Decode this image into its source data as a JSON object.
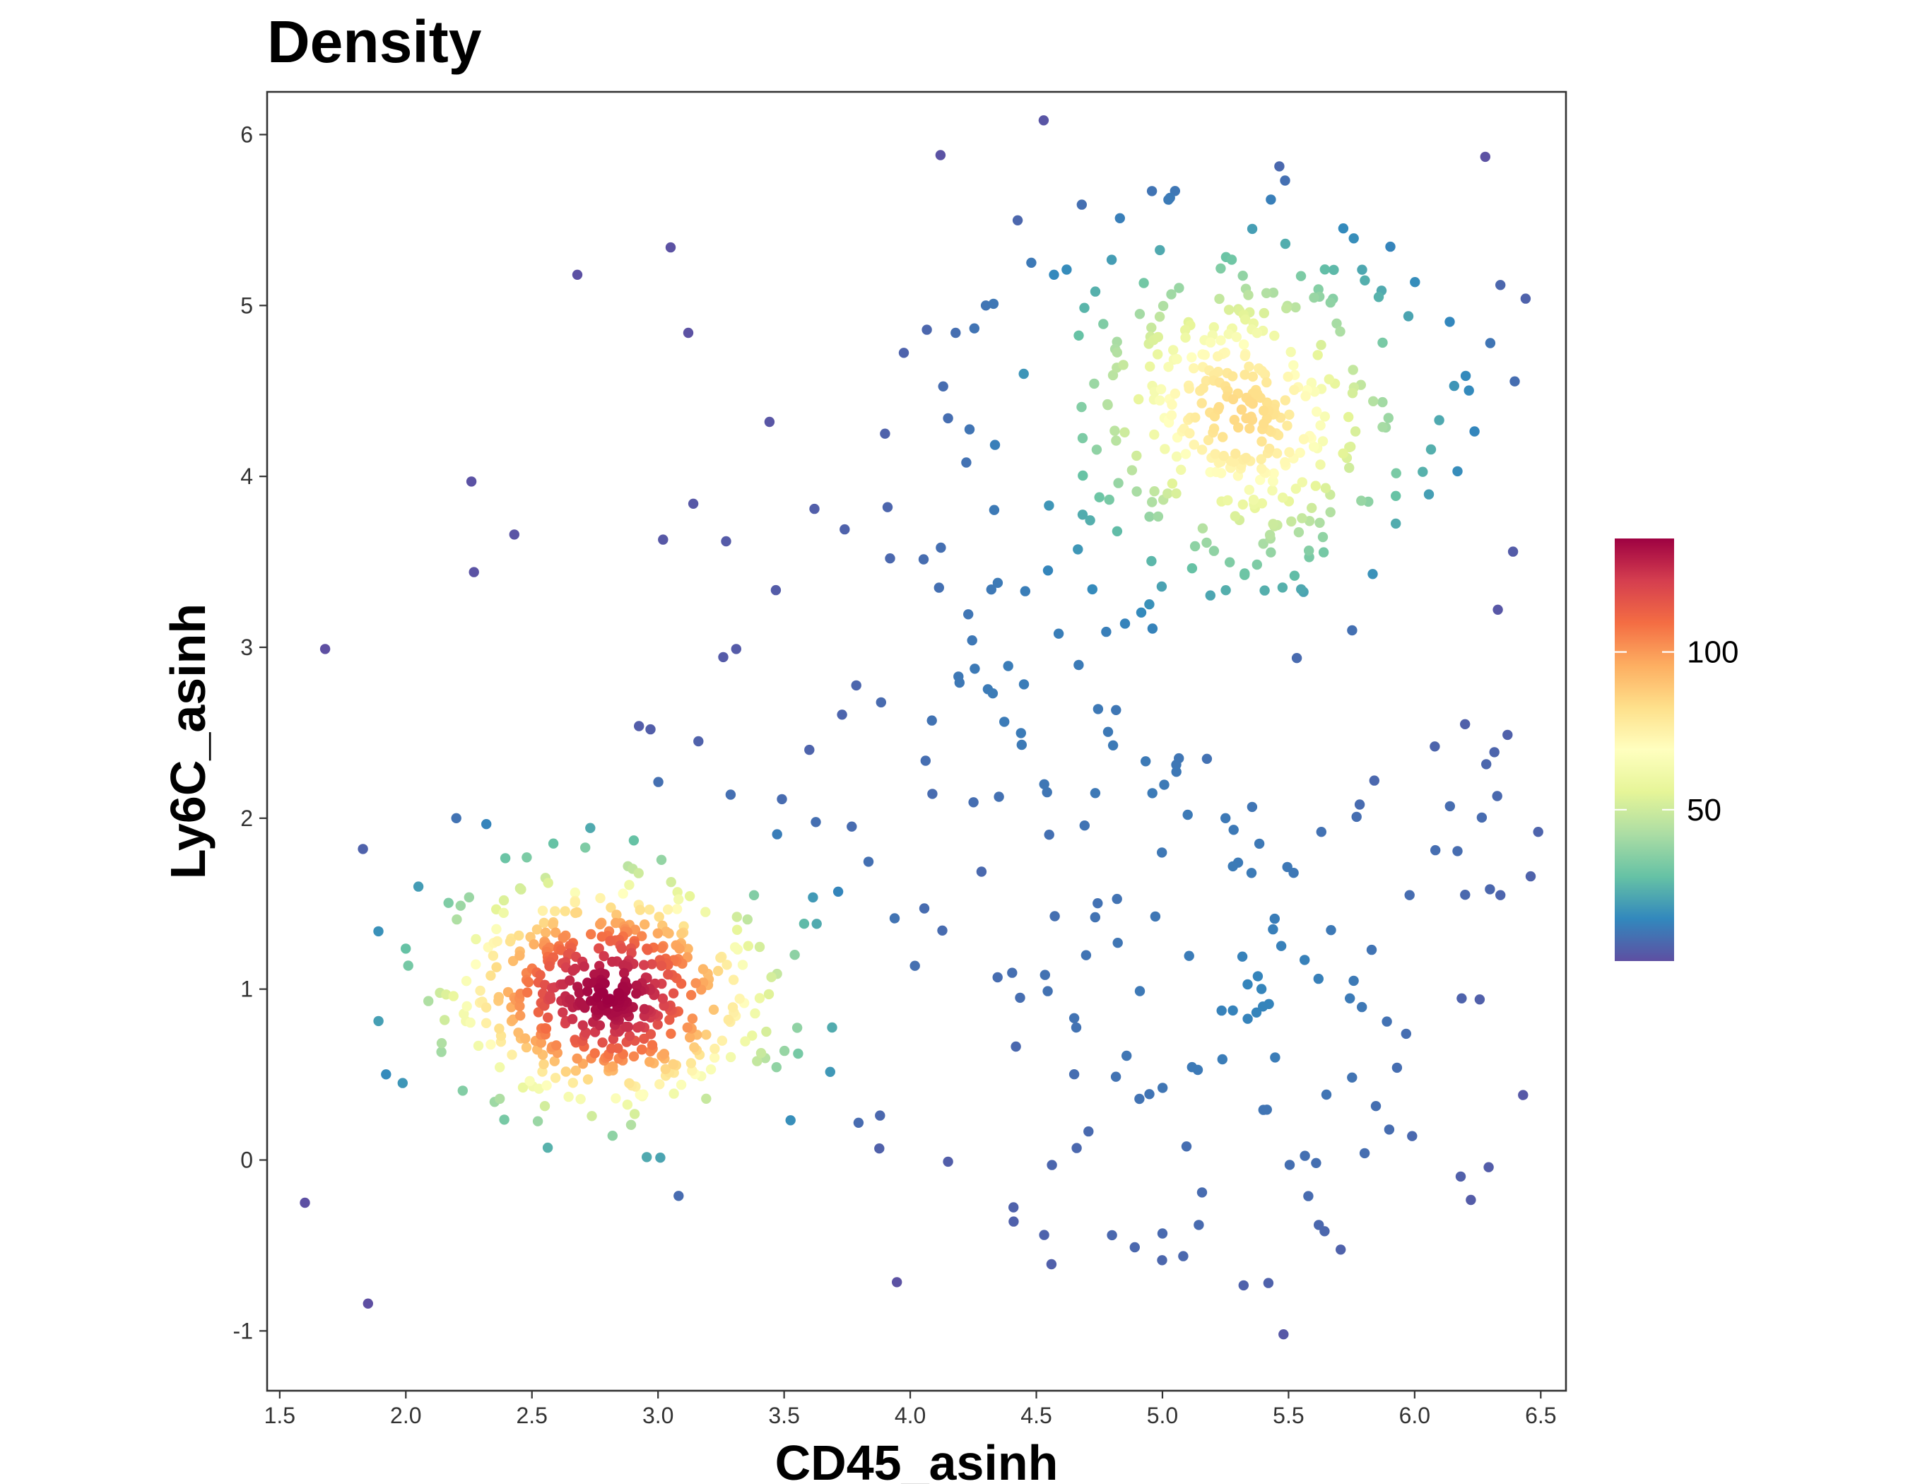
{
  "chart_data": {
    "type": "scatter",
    "title": "Density",
    "xlabel": "CD45_asinh",
    "ylabel": "Ly6C_asinh",
    "xlim": [
      1.45,
      6.6
    ],
    "ylim": [
      -1.35,
      6.25
    ],
    "x_ticks": [
      1.5,
      2.0,
      2.5,
      3.0,
      3.5,
      4.0,
      4.5,
      5.0,
      5.5,
      6.0,
      6.5
    ],
    "x_tick_labels": [
      "1.5",
      "2.0",
      "2.5",
      "3.0",
      "3.5",
      "4.0",
      "4.5",
      "5.0",
      "5.5",
      "6.0",
      "6.5"
    ],
    "y_ticks": [
      -1,
      0,
      1,
      2,
      3,
      4,
      5,
      6
    ],
    "y_tick_labels": [
      "-1",
      "0",
      "1",
      "2",
      "3",
      "4",
      "5",
      "6"
    ],
    "grid": false,
    "legend": {
      "position": "right",
      "type": "colorbar",
      "palette": "Spectral",
      "colors_low_to_high": [
        "#5e4fa2",
        "#3288bd",
        "#66c2a5",
        "#abdda4",
        "#e6f598",
        "#ffffbf",
        "#fee08b",
        "#fdae61",
        "#f46d43",
        "#d53e4f",
        "#9e0142"
      ],
      "range": [
        2,
        136
      ],
      "tick_values": [
        50,
        100
      ],
      "tick_labels": [
        "50",
        "100"
      ]
    },
    "clusters": [
      {
        "center": [
          2.8,
          0.95
        ],
        "sd": [
          0.3,
          0.32
        ],
        "n": 520
      },
      {
        "center": [
          5.35,
          4.4
        ],
        "sd": [
          0.35,
          0.52
        ],
        "n": 380
      },
      {
        "center": [
          5.2,
          0.9
        ],
        "sd": [
          0.62,
          0.85
        ],
        "n": 110
      },
      {
        "center": [
          4.1,
          2.7
        ],
        "sd": [
          0.55,
          0.9
        ],
        "n": 70
      }
    ],
    "sample_points": [
      [
        1.6,
        -0.25
      ],
      [
        1.68,
        2.99
      ],
      [
        1.83,
        1.82
      ],
      [
        1.85,
        -0.84
      ],
      [
        2.05,
        1.6
      ],
      [
        2.2,
        2.0
      ],
      [
        2.26,
        3.97
      ],
      [
        2.27,
        3.44
      ],
      [
        2.43,
        3.66
      ],
      [
        2.68,
        5.18
      ],
      [
        3.05,
        5.34
      ],
      [
        3.12,
        4.84
      ],
      [
        3.14,
        3.84
      ],
      [
        3.16,
        2.45
      ],
      [
        3.27,
        3.62
      ],
      [
        3.31,
        2.99
      ],
      [
        2.97,
        2.52
      ],
      [
        3.02,
        3.63
      ],
      [
        4.12,
        5.88
      ],
      [
        4.33,
        5.01
      ],
      [
        4.68,
        5.59
      ],
      [
        5.03,
        5.63
      ],
      [
        5.05,
        5.67
      ],
      [
        5.43,
        5.62
      ],
      [
        6.28,
        5.87
      ],
      [
        6.34,
        5.12
      ],
      [
        6.44,
        5.04
      ],
      [
        6.3,
        4.78
      ],
      [
        6.17,
        4.03
      ],
      [
        6.39,
        3.56
      ],
      [
        6.33,
        3.22
      ],
      [
        6.49,
        1.92
      ],
      [
        6.46,
        1.66
      ],
      [
        6.34,
        1.55
      ],
      [
        6.43,
        0.38
      ],
      [
        5.48,
        -1.02
      ],
      [
        5.42,
        -0.72
      ],
      [
        4.56,
        -0.61
      ],
      [
        4.41,
        -0.36
      ],
      [
        4.8,
        -0.44
      ],
      [
        5.0,
        -0.43
      ],
      [
        5.62,
        -0.38
      ],
      [
        4.15,
        -0.01
      ],
      [
        4.66,
        0.07
      ],
      [
        3.88,
        0.26
      ],
      [
        3.6,
        2.4
      ],
      [
        3.62,
        3.81
      ],
      [
        3.74,
        3.69
      ],
      [
        3.9,
        4.25
      ],
      [
        3.91,
        3.82
      ],
      [
        3.92,
        3.52
      ],
      [
        4.15,
        4.34
      ],
      [
        4.18,
        4.84
      ],
      [
        4.3,
        5.0
      ],
      [
        4.45,
        4.6
      ],
      [
        4.48,
        5.25
      ],
      [
        4.62,
        5.21
      ],
      [
        4.57,
        5.18
      ],
      [
        4.65,
        0.83
      ],
      [
        5.1,
        2.02
      ],
      [
        5.25,
        2.0
      ],
      [
        5.3,
        1.74
      ],
      [
        5.52,
        1.68
      ],
      [
        5.63,
        1.92
      ],
      [
        5.84,
        2.22
      ],
      [
        5.98,
        1.55
      ],
      [
        6.08,
        2.42
      ],
      [
        6.14,
        2.07
      ],
      [
        6.2,
        2.55
      ],
      [
        5.99,
        0.14
      ],
      [
        5.93,
        0.54
      ],
      [
        5.89,
        0.81
      ]
    ]
  }
}
